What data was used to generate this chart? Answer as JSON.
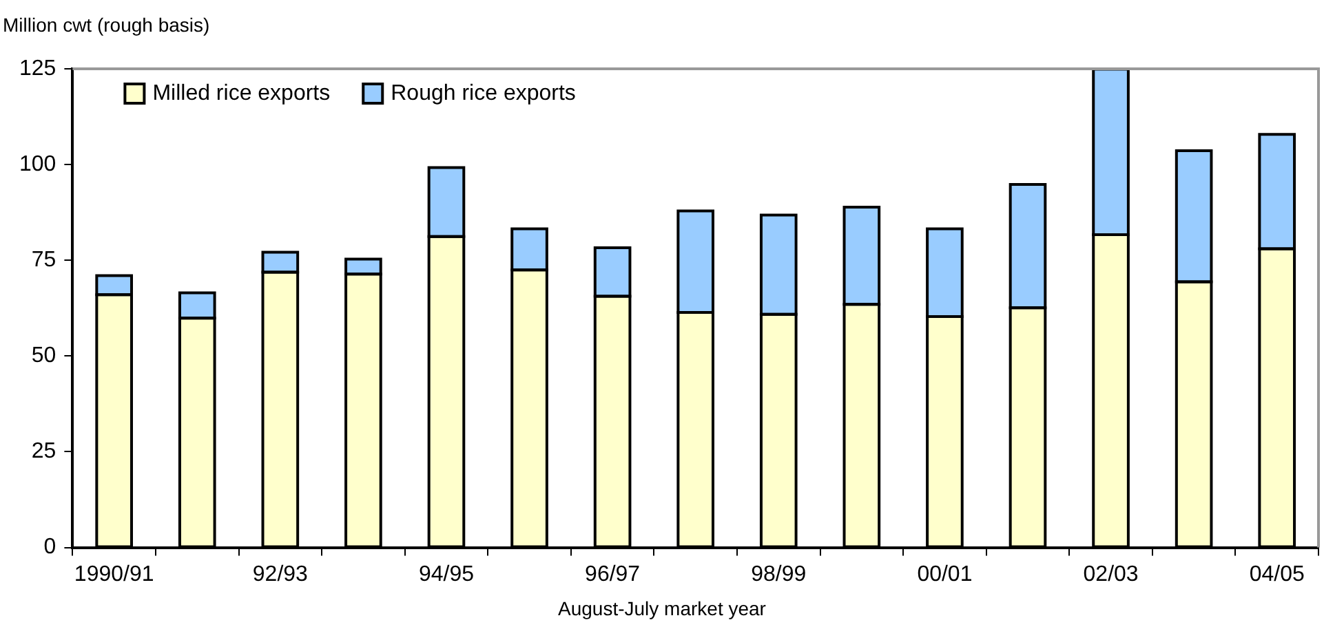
{
  "chart_data": {
    "type": "bar",
    "ylabel": "Million cwt (rough basis)",
    "xlabel": "August-July market year",
    "categories": [
      "1990/91",
      null,
      "92/93",
      null,
      "94/95",
      null,
      "96/97",
      null,
      "98/99",
      null,
      "00/01",
      null,
      "02/03",
      null,
      "04/05"
    ],
    "stacked": true,
    "legend": "top left",
    "grid": false,
    "ylim": [
      0,
      125
    ],
    "yticks": [
      0,
      25,
      50,
      75,
      100,
      125
    ],
    "series": [
      {
        "name": "Milled rice exports",
        "color": "#ffffcc",
        "values": [
          66.0,
          59.9,
          71.9,
          71.4,
          81.2,
          72.5,
          65.6,
          61.4,
          60.9,
          63.5,
          60.3,
          62.6,
          81.7,
          69.4,
          78.0
        ]
      },
      {
        "name": "Rough rice exports",
        "color": "#99ccff",
        "values": [
          5.0,
          6.6,
          5.2,
          3.9,
          18.0,
          10.7,
          12.7,
          26.5,
          25.9,
          25.4,
          22.9,
          32.2,
          43.2,
          34.2,
          29.9
        ]
      }
    ]
  }
}
